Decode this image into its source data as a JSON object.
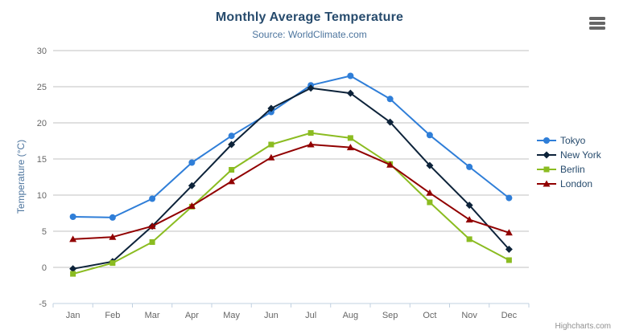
{
  "header": {
    "title": "Monthly Average Temperature",
    "subtitle": "Source: WorldClimate.com"
  },
  "icons": {
    "export_menu": "hamburger-icon"
  },
  "credit": "Highcharts.com",
  "colors": {
    "title": "#274b6d",
    "subtitle": "#4d759e",
    "axis_label": "#666666",
    "axis_title": "#4d759e",
    "grid_line": "#c0c0c0",
    "axis_line": "#c0d0e0",
    "legend_text": "#274b6d",
    "credit_text": "#909090",
    "background": "#ffffff"
  },
  "chart_data": {
    "type": "line",
    "title": "Monthly Average Temperature",
    "subtitle": "Source: WorldClimate.com",
    "xlabel": "",
    "ylabel": "Temperature (°C)",
    "ylim": [
      -5,
      30
    ],
    "yticks": [
      -5,
      0,
      5,
      10,
      15,
      20,
      25,
      30
    ],
    "grid": true,
    "legend_position": "right",
    "categories": [
      "Jan",
      "Feb",
      "Mar",
      "Apr",
      "May",
      "Jun",
      "Jul",
      "Aug",
      "Sep",
      "Oct",
      "Nov",
      "Dec"
    ],
    "series": [
      {
        "name": "Tokyo",
        "color": "#2f7ed8",
        "marker": "circle",
        "values": [
          7.0,
          6.9,
          9.5,
          14.5,
          18.2,
          21.5,
          25.2,
          26.5,
          23.3,
          18.3,
          13.9,
          9.6
        ]
      },
      {
        "name": "New York",
        "color": "#0d233a",
        "marker": "diamond",
        "values": [
          -0.2,
          0.8,
          5.7,
          11.3,
          17.0,
          22.0,
          24.8,
          24.1,
          20.1,
          14.1,
          8.6,
          2.5
        ]
      },
      {
        "name": "Berlin",
        "color": "#8bbc21",
        "marker": "square",
        "values": [
          -0.9,
          0.6,
          3.5,
          8.4,
          13.5,
          17.0,
          18.6,
          17.9,
          14.3,
          9.0,
          3.9,
          1.0
        ]
      },
      {
        "name": "London",
        "color": "#910000",
        "marker": "triangle",
        "values": [
          3.9,
          4.2,
          5.7,
          8.5,
          11.9,
          15.2,
          17.0,
          16.6,
          14.2,
          10.3,
          6.6,
          4.8
        ]
      }
    ]
  }
}
